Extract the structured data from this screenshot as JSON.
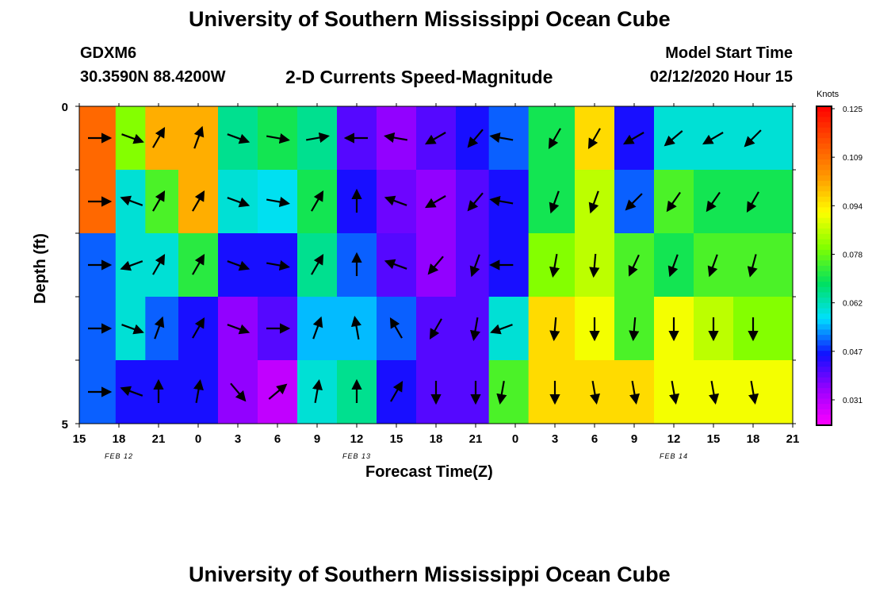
{
  "title": "University of Southern Mississippi Ocean Cube",
  "footer_title": "University of Southern Mississippi Ocean Cube",
  "station": {
    "id": "GDXM6",
    "location": "30.3590N 88.4200W"
  },
  "model": {
    "label": "Model Start Time",
    "time": "02/12/2020 Hour 15"
  },
  "chart_data": {
    "type": "heatmap",
    "title": "2-D Currents Speed-Magnitude",
    "xlabel": "Forecast Time(Z)",
    "ylabel": "Depth (ft)",
    "xlim": [
      0,
      54
    ],
    "ylim": [
      0,
      5
    ],
    "y_ticks": [
      0,
      1,
      2,
      3,
      4,
      5
    ],
    "y_tick_labels": [
      "0",
      "",
      "",
      "",
      "",
      "5"
    ],
    "x_tick_hours": [
      0,
      3,
      6,
      9,
      12,
      15,
      18,
      21,
      24,
      27,
      30,
      33,
      36,
      39,
      42,
      45,
      48,
      51,
      54
    ],
    "x_tick_labels": [
      "15",
      "18",
      "21",
      "0",
      "3",
      "6",
      "9",
      "12",
      "15",
      "18",
      "21",
      "0",
      "3",
      "6",
      "9",
      "12",
      "15",
      "18",
      "21"
    ],
    "date_labels": [
      {
        "label": "FEB 12",
        "hour": 3
      },
      {
        "label": "FEB 13",
        "hour": 21
      },
      {
        "label": "FEB 14",
        "hour": 45
      }
    ],
    "units": "Knots",
    "colorbar": {
      "min": 0.023,
      "max": 0.125,
      "ticks": [
        "0.125",
        "0.109",
        "0.094",
        "0.078",
        "0.062",
        "0.047",
        "0.031"
      ],
      "colors": [
        "#ff00ff",
        "#9a00ff",
        "#1010ff",
        "#00e0ff",
        "#00e060",
        "#80ff00",
        "#ffff00",
        "#ff9900",
        "#ff5000",
        "#ff0000"
      ]
    },
    "depth_layers": [
      0.5,
      1.5,
      2.5,
      3.5,
      4.5
    ],
    "columns": [
      {
        "hour": 1.5,
        "speeds": [
          0.11,
          0.11,
          0.05,
          0.05,
          0.05
        ],
        "dir": [
          0,
          0,
          0,
          0,
          0
        ]
      },
      {
        "hour": 4,
        "speeds": [
          0.08,
          0.06,
          0.06,
          0.06,
          0.045
        ],
        "dir": [
          20,
          200,
          160,
          20,
          200
        ]
      },
      {
        "hour": 6,
        "speeds": [
          0.1,
          0.075,
          0.06,
          0.05,
          0.045
        ],
        "dir": [
          300,
          300,
          300,
          290,
          270
        ]
      },
      {
        "hour": 9,
        "speeds": [
          0.1,
          0.1,
          0.072,
          0.045,
          0.045
        ],
        "dir": [
          290,
          300,
          300,
          300,
          280
        ]
      },
      {
        "hour": 12,
        "speeds": [
          0.065,
          0.06,
          0.045,
          0.035,
          0.035
        ],
        "dir": [
          20,
          20,
          20,
          20,
          50
        ]
      },
      {
        "hour": 15,
        "speeds": [
          0.07,
          0.058,
          0.045,
          0.04,
          0.03
        ],
        "dir": [
          10,
          10,
          10,
          0,
          320
        ]
      },
      {
        "hour": 18,
        "speeds": [
          0.065,
          0.07,
          0.065,
          0.055,
          0.06
        ],
        "dir": [
          350,
          300,
          300,
          290,
          280
        ]
      },
      {
        "hour": 21,
        "speeds": [
          0.04,
          0.045,
          0.05,
          0.055,
          0.065
        ],
        "dir": [
          180,
          270,
          270,
          260,
          270
        ]
      },
      {
        "hour": 24,
        "speeds": [
          0.035,
          0.038,
          0.04,
          0.05,
          0.045
        ],
        "dir": [
          190,
          200,
          200,
          240,
          300
        ]
      },
      {
        "hour": 27,
        "speeds": [
          0.04,
          0.035,
          0.035,
          0.04,
          0.04
        ],
        "dir": [
          150,
          150,
          130,
          120,
          90
        ]
      },
      {
        "hour": 30,
        "speeds": [
          0.045,
          0.04,
          0.04,
          0.04,
          0.04
        ],
        "dir": [
          130,
          130,
          110,
          100,
          90
        ]
      },
      {
        "hour": 32,
        "speeds": [
          0.05,
          0.045,
          0.045,
          0.06,
          0.075
        ],
        "dir": [
          190,
          190,
          180,
          160,
          100
        ]
      },
      {
        "hour": 36,
        "speeds": [
          0.07,
          0.07,
          0.08,
          0.095,
          0.095
        ],
        "dir": [
          120,
          110,
          100,
          95,
          90
        ]
      },
      {
        "hour": 39,
        "speeds": [
          0.095,
          0.085,
          0.085,
          0.09,
          0.095
        ],
        "dir": [
          120,
          110,
          95,
          90,
          80
        ]
      },
      {
        "hour": 42,
        "speeds": [
          0.045,
          0.05,
          0.075,
          0.075,
          0.095
        ],
        "dir": [
          150,
          135,
          115,
          95,
          80
        ]
      },
      {
        "hour": 45,
        "speeds": [
          0.06,
          0.075,
          0.07,
          0.09,
          0.09
        ],
        "dir": [
          140,
          125,
          110,
          90,
          80
        ]
      },
      {
        "hour": 48,
        "speeds": [
          0.06,
          0.07,
          0.075,
          0.085,
          0.09
        ],
        "dir": [
          150,
          125,
          110,
          90,
          80
        ]
      },
      {
        "hour": 51,
        "speeds": [
          0.06,
          0.07,
          0.075,
          0.08,
          0.09
        ],
        "dir": [
          135,
          120,
          105,
          90,
          80
        ]
      }
    ]
  }
}
